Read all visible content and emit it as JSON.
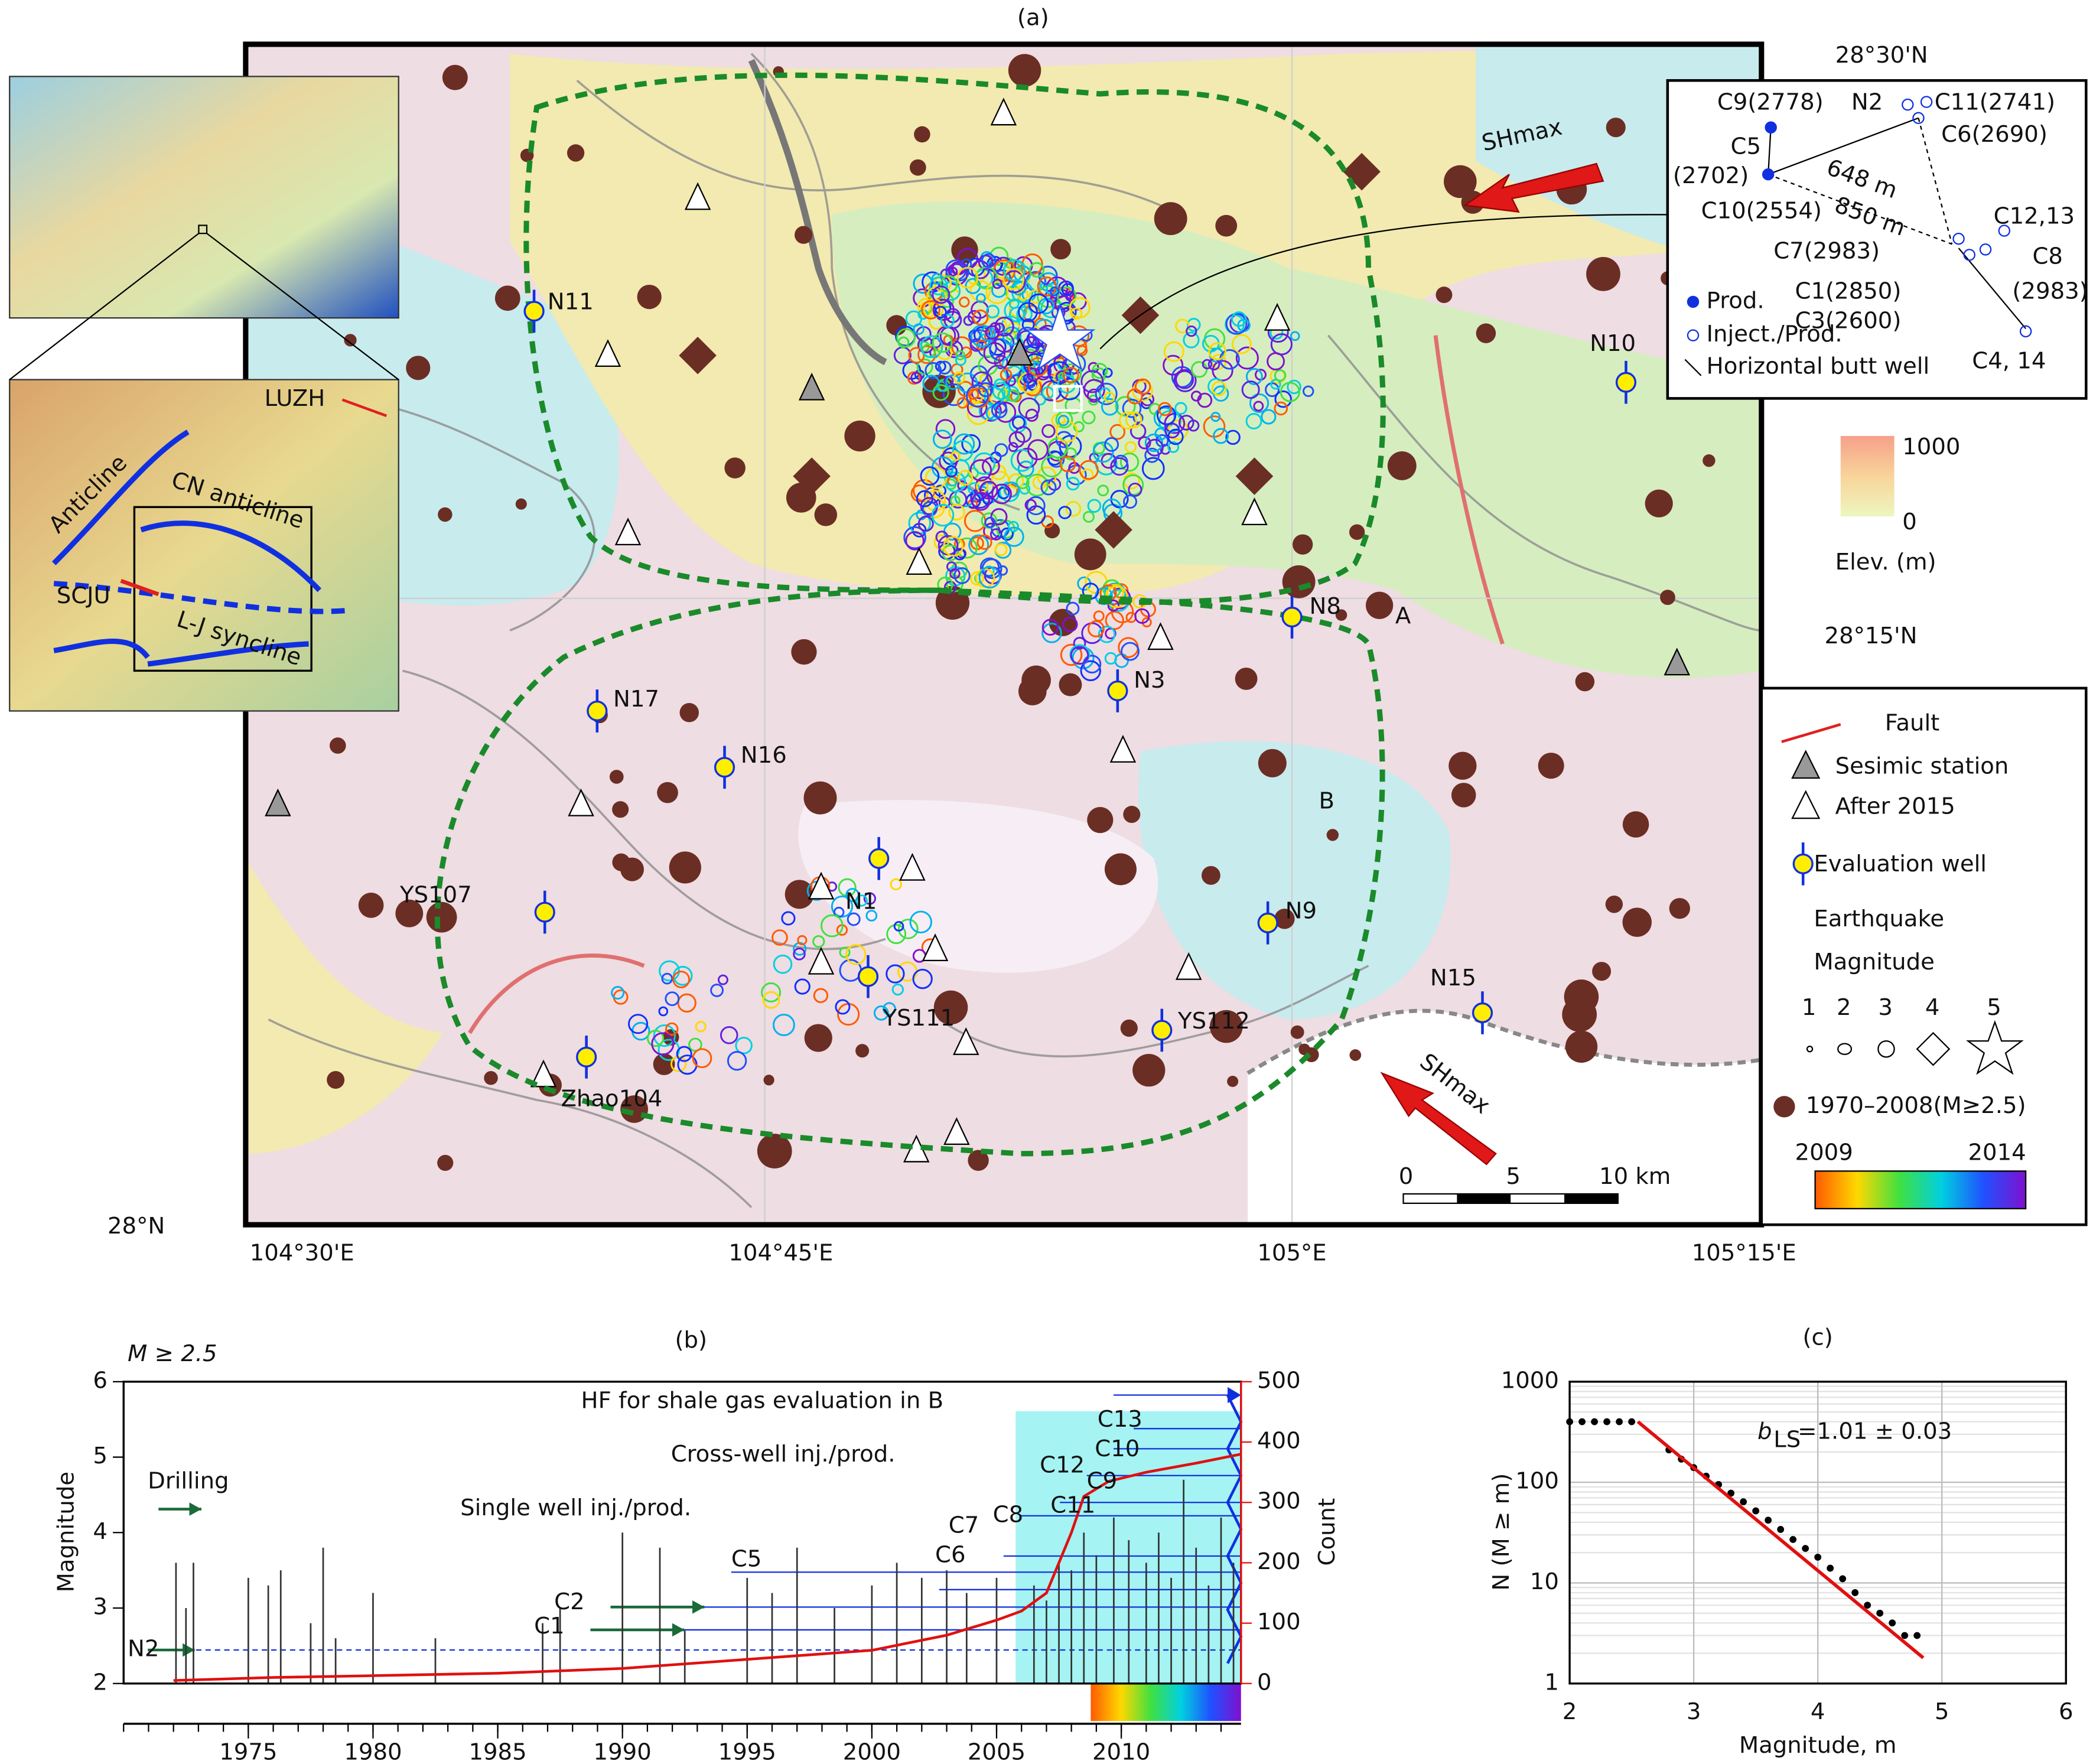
{
  "map": {
    "panel_label": "(a)",
    "lat_labels": [
      "28°30'N",
      "28°15'N",
      "28°N"
    ],
    "lon_labels": [
      "104°30'E",
      "104°45'E",
      "105°E",
      "105°15'E"
    ],
    "wells": [
      "N11",
      "N10",
      "N8",
      "N3",
      "N17",
      "N16",
      "N1",
      "YS107",
      "YS111",
      "YS112",
      "N9",
      "N15",
      "Zhao104"
    ],
    "zones": [
      "A",
      "B"
    ],
    "shmax": [
      "SHmax",
      "SHmax"
    ],
    "scale_bar": [
      "0",
      "5",
      "10 km"
    ],
    "elevation": {
      "max": "1000",
      "min": "0",
      "label": "Elev. (m)"
    },
    "legend": [
      "Fault",
      "Sesimic station",
      "After 2015",
      "Evaluation well",
      "Earthquake",
      "Magnitude",
      "1",
      "2",
      "3",
      "4",
      "5",
      "1970–2008(M≥2.5)",
      "2009",
      "2014"
    ],
    "inset": [
      "LUZH",
      "Anticline",
      "CN anticline",
      "SCJU",
      "L-J syncline"
    ],
    "well_box": {
      "labels": [
        "C9(2778)",
        "N2",
        "C11(2741)",
        "C6(2690)",
        "C5",
        "(2702)",
        "648 m",
        "850 m",
        "C10(2554)",
        "C12,13",
        "C7(2983)",
        "C8",
        "(2983)",
        "C1(2850)",
        "C3(2600)",
        "C4, 14"
      ],
      "legend": [
        "Prod.",
        "Inject./Prod.",
        "Horizontal butt well"
      ]
    }
  },
  "chart_data": [
    {
      "type": "stem",
      "panel_label": "(b)",
      "title": "M ≥ 2.5",
      "y_label": "Magnitude",
      "y2_label": "Count",
      "xlim": [
        1970,
        2014.8
      ],
      "xticks": [
        1975,
        1980,
        1985,
        1990,
        1995,
        2000,
        2005,
        2010
      ],
      "ylim": [
        2,
        6
      ],
      "yticks": [
        2,
        3,
        4,
        5,
        6
      ],
      "y2lim": [
        0,
        500
      ],
      "y2ticks": [
        0,
        100,
        200,
        300,
        400,
        500
      ],
      "series": [
        {
          "color": "#333333",
          "x": [
            1972.1,
            1972.5,
            1972.8,
            1975,
            1975.8,
            1976.3,
            1977.5,
            1978,
            1978.5,
            1980,
            1982.5,
            1986.8,
            1987.5,
            1990,
            1991.5,
            1992.5,
            1995,
            1996,
            1997,
            1998.5,
            2000,
            2001,
            2002,
            2003,
            2003.8,
            2005,
            2006.5,
            2007,
            2007.5,
            2008,
            2008.5,
            2009,
            2009.7,
            2010.3,
            2011,
            2011.5,
            2012,
            2012.5,
            2013,
            2013.5,
            2014,
            2014.5
          ],
          "values": [
            3.6,
            3.0,
            3.6,
            3.4,
            3.3,
            3.5,
            2.8,
            3.8,
            2.6,
            3.2,
            2.6,
            2.8,
            3.0,
            4.0,
            3.8,
            2.7,
            3.4,
            3.2,
            3.8,
            3.0,
            3.3,
            3.6,
            3.4,
            3.5,
            3.2,
            3.4,
            3.3,
            3.1,
            3.6,
            3.5,
            4.0,
            3.7,
            4.2,
            3.9,
            3.6,
            4.0,
            3.4,
            4.7,
            3.8,
            3.3,
            4.2,
            3.6
          ]
        },
        {
          "color": "#e01010",
          "axis": "y2",
          "x": [
            1972,
            1976,
            1980,
            1985,
            1990,
            1995,
            2000,
            2003,
            2005,
            2006,
            2007,
            2008,
            2008.5,
            2009.5,
            2011,
            2013,
            2014.8
          ],
          "values": [
            5,
            10,
            13,
            17,
            25,
            40,
            55,
            80,
            105,
            120,
            150,
            250,
            310,
            335,
            350,
            365,
            380
          ]
        }
      ],
      "annotations": [
        "HF for shale gas evaluation in B",
        "Cross-well inj./prod.",
        "Single well inj./prod.",
        "Drilling",
        "N2",
        "C1",
        "C2",
        "C5",
        "C6",
        "C7",
        "C8",
        "C11",
        "C12",
        "C9",
        "C10",
        "C13"
      ]
    },
    {
      "type": "scatter",
      "panel_label": "(c)",
      "x_label": "Magnitude, m",
      "y_label": "N (M ≥ m)",
      "log_y": true,
      "grid": true,
      "xlim": [
        2,
        6
      ],
      "xticks": [
        2,
        3,
        4,
        5,
        6
      ],
      "ylim": [
        1,
        1000
      ],
      "yticks": [
        1,
        10,
        100,
        1000
      ],
      "series": [
        {
          "type": "dots",
          "color": "#000000",
          "x": [
            2.0,
            2.1,
            2.2,
            2.3,
            2.4,
            2.5,
            2.8,
            2.9,
            3.0,
            3.1,
            3.2,
            3.3,
            3.4,
            3.5,
            3.6,
            3.7,
            3.8,
            3.9,
            4.0,
            4.1,
            4.2,
            4.3,
            4.4,
            4.5,
            4.6,
            4.7,
            4.8
          ],
          "values": [
            400,
            400,
            400,
            400,
            400,
            400,
            210,
            170,
            140,
            115,
            95,
            78,
            64,
            52,
            42,
            34,
            27,
            22,
            18,
            14,
            11,
            8,
            6,
            5,
            4,
            3,
            3
          ]
        },
        {
          "type": "line",
          "color": "#e01010",
          "x": [
            2.55,
            4.85
          ],
          "values": [
            400,
            1.8
          ]
        }
      ],
      "annotation": [
        "b",
        "LS",
        "=1.01 ± 0.03"
      ]
    }
  ]
}
